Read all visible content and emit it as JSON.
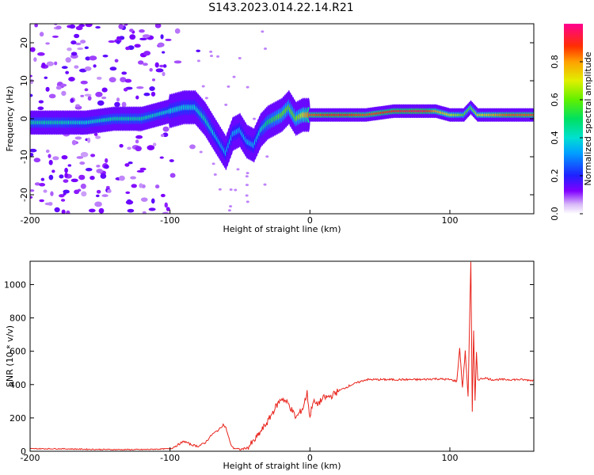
{
  "title": "S143.2023.014.22.14.R21",
  "colors": {
    "snr_line": "#e8221a",
    "axis": "#000000",
    "spectral_dark": "#7a00e6",
    "spectral_mid": "#00c8c8",
    "spectral_hot": "#ff1a1a"
  },
  "chart_data": [
    {
      "type": "heatmap",
      "name": "spectrogram",
      "xlabel": "Height of straight line (km)",
      "ylabel": "Frequency (Hz)",
      "xlim": [
        -200,
        160
      ],
      "ylim": [
        -25,
        25
      ],
      "xticks": [
        -200,
        -100,
        0,
        100
      ],
      "yticks": [
        -20,
        -10,
        0,
        10,
        20
      ],
      "colorbar": {
        "label": "Normalized spectral amplitude",
        "range": [
          0,
          1
        ],
        "ticks": [
          "0.0",
          "0.2",
          "0.4",
          "0.6",
          "0.8"
        ],
        "tick_values": [
          0.0,
          0.2,
          0.4,
          0.6,
          0.8
        ],
        "colormap": "rainbow"
      },
      "ridge": {
        "x": [
          -200,
          -180,
          -160,
          -140,
          -120,
          -100,
          -90,
          -82,
          -75,
          -70,
          -65,
          -60,
          -55,
          -50,
          -45,
          -40,
          -35,
          -30,
          -25,
          -20,
          -15,
          -10,
          -5,
          0,
          20,
          40,
          60,
          80,
          90,
          100,
          110,
          115,
          120,
          140,
          160
        ],
        "frequency": [
          -1,
          -1,
          -1,
          0,
          0,
          2,
          3,
          3,
          0,
          -3,
          -6,
          -9,
          -4,
          -3,
          -6,
          -7,
          -3,
          -1,
          0,
          1,
          3,
          0,
          1,
          1,
          1,
          1,
          2,
          2,
          2,
          1,
          1,
          3,
          1,
          1,
          1
        ],
        "amplitude": [
          0.45,
          0.45,
          0.4,
          0.45,
          0.45,
          0.4,
          0.4,
          0.4,
          0.45,
          0.4,
          0.35,
          0.35,
          0.35,
          0.35,
          0.35,
          0.35,
          0.4,
          0.5,
          0.55,
          0.6,
          0.6,
          0.6,
          0.7,
          0.85,
          0.9,
          0.85,
          0.9,
          0.95,
          0.8,
          0.7,
          0.6,
          0.6,
          0.7,
          0.85,
          0.85
        ]
      },
      "grid": false
    },
    {
      "type": "line",
      "name": "snr",
      "xlabel": "Height of straight line (km)",
      "ylabel": "SNR (10 * v/v)",
      "xlim": [
        -200,
        160
      ],
      "ylim": [
        0,
        1140
      ],
      "xticks": [
        -200,
        -100,
        0,
        100
      ],
      "yticks": [
        0,
        200,
        400,
        600,
        800,
        1000
      ],
      "grid": false,
      "series": [
        {
          "x": [
            -200,
            -180,
            -160,
            -140,
            -120,
            -100,
            -95,
            -90,
            -85,
            -80,
            -75,
            -70,
            -65,
            -62,
            -60,
            -57,
            -55,
            -50,
            -45,
            -40,
            -35,
            -30,
            -25,
            -20,
            -15,
            -10,
            -5,
            -2,
            0,
            2,
            5,
            10,
            15,
            20,
            30,
            40,
            50,
            60,
            70,
            80,
            90,
            100,
            105,
            107,
            109,
            111,
            113,
            115,
            116,
            117,
            118,
            119,
            120,
            125,
            130,
            140,
            150,
            160
          ],
          "values": [
            15,
            15,
            12,
            10,
            10,
            15,
            35,
            60,
            40,
            30,
            50,
            100,
            130,
            160,
            140,
            50,
            20,
            10,
            20,
            60,
            120,
            180,
            260,
            320,
            280,
            200,
            260,
            350,
            200,
            300,
            280,
            320,
            330,
            360,
            400,
            430,
            430,
            430,
            430,
            430,
            435,
            430,
            420,
            620,
            380,
            600,
            330,
            1140,
            240,
            720,
            300,
            590,
            430,
            440,
            430,
            430,
            430,
            425
          ]
        }
      ]
    }
  ]
}
